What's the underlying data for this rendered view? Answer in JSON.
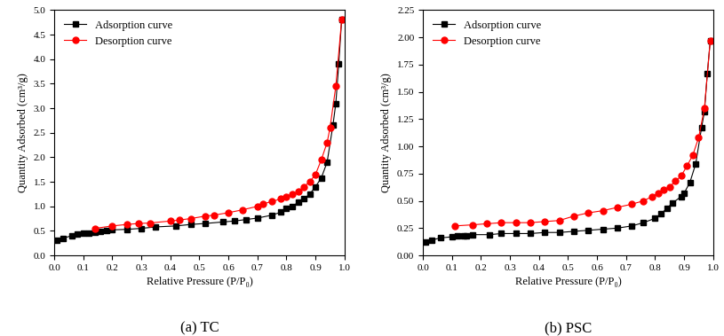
{
  "chart_data": [
    {
      "type": "line",
      "title": "(a) TC",
      "x_label": "Relative Pressure (P/P₀)",
      "y_label": "Quantity Adsorbed (cm³/g)",
      "xlim": [
        0,
        1.0
      ],
      "ylim": [
        0,
        5.0
      ],
      "xticks": [
        {
          "value": 0,
          "label": "0.0"
        },
        {
          "value": 0.1,
          "label": "0.1"
        },
        {
          "value": 0.2,
          "label": "0.2"
        },
        {
          "value": 0.3,
          "label": "0.3"
        },
        {
          "value": 0.4,
          "label": "0.4"
        },
        {
          "value": 0.5,
          "label": "0.5"
        },
        {
          "value": 0.6,
          "label": "0.6"
        },
        {
          "value": 0.7,
          "label": "0.7"
        },
        {
          "value": 0.8,
          "label": "0.8"
        },
        {
          "value": 0.9,
          "label": "0.9"
        },
        {
          "value": 1.0,
          "label": "1.0"
        }
      ],
      "yticks": [
        {
          "value": 0,
          "label": "0.0"
        },
        {
          "value": 0.5,
          "label": "0.5"
        },
        {
          "value": 1.0,
          "label": "1.0"
        },
        {
          "value": 1.5,
          "label": "1.5"
        },
        {
          "value": 2.0,
          "label": "2.0"
        },
        {
          "value": 2.5,
          "label": "2.5"
        },
        {
          "value": 3.0,
          "label": "3.0"
        },
        {
          "value": 3.5,
          "label": "3.5"
        },
        {
          "value": 4.0,
          "label": "4.0"
        },
        {
          "value": 4.5,
          "label": "4.5"
        },
        {
          "value": 5.0,
          "label": "5.0"
        }
      ],
      "legend": "upper left",
      "grid": false,
      "series": [
        {
          "name": "Adsorption curve",
          "color": "#000000",
          "marker": "square",
          "line_style": "solid",
          "x": [
            0.01,
            0.03,
            0.06,
            0.08,
            0.1,
            0.12,
            0.14,
            0.16,
            0.18,
            0.2,
            0.25,
            0.3,
            0.35,
            0.42,
            0.47,
            0.52,
            0.58,
            0.62,
            0.66,
            0.7,
            0.75,
            0.78,
            0.8,
            0.82,
            0.84,
            0.86,
            0.88,
            0.9,
            0.92,
            0.94,
            0.96,
            0.97,
            0.98,
            0.99
          ],
          "values": [
            0.3,
            0.35,
            0.4,
            0.43,
            0.45,
            0.46,
            0.47,
            0.49,
            0.5,
            0.52,
            0.53,
            0.55,
            0.58,
            0.6,
            0.63,
            0.65,
            0.68,
            0.7,
            0.73,
            0.76,
            0.82,
            0.88,
            0.95,
            1.0,
            1.08,
            1.15,
            1.25,
            1.4,
            1.58,
            1.9,
            2.65,
            3.1,
            3.9,
            4.8
          ]
        },
        {
          "name": "Desorption curve",
          "color": "#ff0000",
          "marker": "circle",
          "line_style": "solid",
          "x": [
            0.14,
            0.2,
            0.25,
            0.29,
            0.33,
            0.4,
            0.43,
            0.47,
            0.52,
            0.55,
            0.6,
            0.65,
            0.7,
            0.72,
            0.75,
            0.78,
            0.8,
            0.82,
            0.84,
            0.86,
            0.88,
            0.9,
            0.92,
            0.94,
            0.95,
            0.97,
            0.99
          ],
          "values": [
            0.55,
            0.6,
            0.63,
            0.65,
            0.66,
            0.7,
            0.72,
            0.75,
            0.8,
            0.82,
            0.87,
            0.93,
            1.0,
            1.05,
            1.1,
            1.15,
            1.2,
            1.25,
            1.3,
            1.4,
            1.5,
            1.65,
            1.95,
            2.3,
            2.6,
            3.45,
            4.8
          ]
        }
      ]
    },
    {
      "type": "line",
      "title": "(b) PSC",
      "x_label": "Relative Pressure (P/P₀)",
      "y_label": "Quantity Adsorbed (cm³/g)",
      "xlim": [
        0,
        1.0
      ],
      "ylim": [
        0,
        2.25
      ],
      "xticks": [
        {
          "value": 0,
          "label": "0.0"
        },
        {
          "value": 0.1,
          "label": "0.1"
        },
        {
          "value": 0.2,
          "label": "0.2"
        },
        {
          "value": 0.3,
          "label": "0.3"
        },
        {
          "value": 0.4,
          "label": "0.4"
        },
        {
          "value": 0.5,
          "label": "0.5"
        },
        {
          "value": 0.6,
          "label": "0.6"
        },
        {
          "value": 0.7,
          "label": "0.7"
        },
        {
          "value": 0.8,
          "label": "0.8"
        },
        {
          "value": 0.9,
          "label": "0.9"
        },
        {
          "value": 1.0,
          "label": "1.0"
        }
      ],
      "yticks": [
        {
          "value": 0,
          "label": "0.00"
        },
        {
          "value": 0.25,
          "label": "0.25"
        },
        {
          "value": 0.5,
          "label": "0.50"
        },
        {
          "value": 0.75,
          "label": "0.75"
        },
        {
          "value": 1.0,
          "label": "1.00"
        },
        {
          "value": 1.25,
          "label": "1.25"
        },
        {
          "value": 1.5,
          "label": "1.50"
        },
        {
          "value": 1.75,
          "label": "1.75"
        },
        {
          "value": 2.0,
          "label": "2.00"
        },
        {
          "value": 2.25,
          "label": "2.25"
        }
      ],
      "legend": "upper left",
      "grid": false,
      "series": [
        {
          "name": "Adsorption curve",
          "color": "#000000",
          "marker": "square",
          "line_style": "solid",
          "x": [
            0.01,
            0.03,
            0.06,
            0.1,
            0.12,
            0.14,
            0.15,
            0.17,
            0.23,
            0.27,
            0.32,
            0.37,
            0.42,
            0.47,
            0.52,
            0.57,
            0.62,
            0.67,
            0.72,
            0.76,
            0.8,
            0.82,
            0.84,
            0.86,
            0.89,
            0.9,
            0.92,
            0.94,
            0.96,
            0.97,
            0.98,
            0.99
          ],
          "values": [
            0.12,
            0.14,
            0.16,
            0.17,
            0.18,
            0.18,
            0.18,
            0.19,
            0.19,
            0.2,
            0.2,
            0.2,
            0.21,
            0.21,
            0.22,
            0.23,
            0.24,
            0.25,
            0.27,
            0.3,
            0.34,
            0.38,
            0.43,
            0.48,
            0.54,
            0.57,
            0.67,
            0.84,
            1.17,
            1.32,
            1.67,
            1.97
          ]
        },
        {
          "name": "Desorption curve",
          "color": "#ff0000",
          "marker": "circle",
          "line_style": "solid",
          "x": [
            0.11,
            0.17,
            0.22,
            0.27,
            0.32,
            0.37,
            0.42,
            0.47,
            0.52,
            0.57,
            0.62,
            0.67,
            0.72,
            0.76,
            0.79,
            0.81,
            0.83,
            0.85,
            0.87,
            0.89,
            0.91,
            0.93,
            0.95,
            0.97,
            0.99
          ],
          "values": [
            0.27,
            0.28,
            0.29,
            0.3,
            0.3,
            0.3,
            0.31,
            0.32,
            0.36,
            0.39,
            0.41,
            0.44,
            0.47,
            0.5,
            0.54,
            0.57,
            0.6,
            0.63,
            0.68,
            0.73,
            0.82,
            0.92,
            1.08,
            1.35,
            1.97
          ]
        }
      ]
    }
  ]
}
